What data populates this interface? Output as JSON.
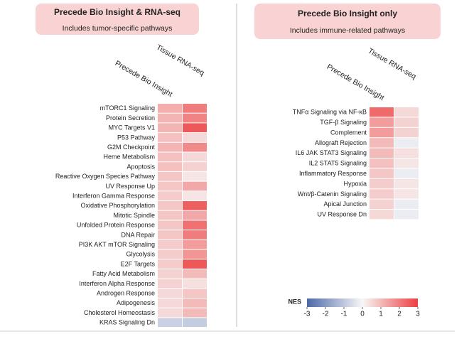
{
  "chart_data": [
    {
      "type": "heatmap",
      "title": "Precede Bio Insight & RNA-seq",
      "subtitle": "Includes tumor-specific pathways",
      "columns": [
        "Precede Bio Insight",
        "Tissue RNA-seq"
      ],
      "rows": [
        "mTORC1 Signaling",
        "Protein Secretion",
        "MYC Targets V1",
        "P53 Pathway",
        "G2M Checkpoint",
        "Heme Metabolism",
        "Apoptosis",
        "Reactive Oxygen Species Pathway",
        "UV Response Up",
        "Interferon Gamma Response",
        "Oxidative Phosphorylation",
        "Mitotic Spindle",
        "Unfolded Protein Response",
        "DNA Repair",
        "PI3K AKT mTOR Signaling",
        "Glycolysis",
        "E2F Targets",
        "Fatty Acid Metabolism",
        "Interferon Alpha Response",
        "Androgen Response",
        "Adipogenesis",
        "Cholesterol Homeostasis",
        "KRAS Signaling Dn"
      ],
      "values": [
        [
          1.2,
          2.0
        ],
        [
          1.1,
          1.9
        ],
        [
          1.1,
          2.6
        ],
        [
          0.9,
          0.5
        ],
        [
          1.1,
          1.8
        ],
        [
          0.9,
          0.5
        ],
        [
          0.9,
          0.6
        ],
        [
          0.8,
          0.3
        ],
        [
          0.8,
          1.3
        ],
        [
          0.7,
          0.3
        ],
        [
          0.8,
          2.5
        ],
        [
          0.8,
          1.3
        ],
        [
          0.8,
          2.2
        ],
        [
          0.8,
          2.0
        ],
        [
          0.7,
          1.5
        ],
        [
          0.7,
          1.6
        ],
        [
          0.7,
          2.6
        ],
        [
          0.6,
          1.0
        ],
        [
          0.6,
          0.4
        ],
        [
          0.5,
          0.8
        ],
        [
          0.5,
          1.0
        ],
        [
          0.5,
          1.0
        ],
        [
          -0.8,
          -0.9
        ]
      ],
      "clim": [
        -3,
        3
      ],
      "colors": [
        "#4d68a8",
        "#f7f7f7",
        "#ec4040"
      ]
    },
    {
      "type": "heatmap",
      "title": "Precede Bio Insight only",
      "subtitle": "Includes immune-related pathways",
      "columns": [
        "Precede Bio Insight",
        "Tissue RNA-seq"
      ],
      "rows": [
        "TNFα Signaling via NF-κB",
        "TGF-β Signaling",
        "Complement",
        "Allograft Rejection",
        "IL6 JAK STAT3 Signaling",
        "IL2 STAT5 Signaling",
        "Inflammatory Response",
        "Hypoxia",
        "Wnt/β-Catenin Signaling",
        "Apical Junction",
        "UV Response Dn"
      ],
      "values": [
        [
          2.3,
          0.5
        ],
        [
          1.5,
          0.6
        ],
        [
          1.5,
          0.6
        ],
        [
          1.0,
          -0.2
        ],
        [
          1.0,
          0.4
        ],
        [
          0.9,
          0.3
        ],
        [
          0.8,
          -0.2
        ],
        [
          0.7,
          0.3
        ],
        [
          0.7,
          0.3
        ],
        [
          0.6,
          -0.2
        ],
        [
          0.5,
          -0.2
        ]
      ],
      "clim": [
        -3,
        3
      ],
      "colors": [
        "#4d68a8",
        "#f7f7f7",
        "#ec4040"
      ],
      "colorbar": {
        "label": "NES",
        "ticks": [
          -3,
          -2,
          -1,
          0,
          1,
          2,
          3
        ]
      }
    }
  ]
}
